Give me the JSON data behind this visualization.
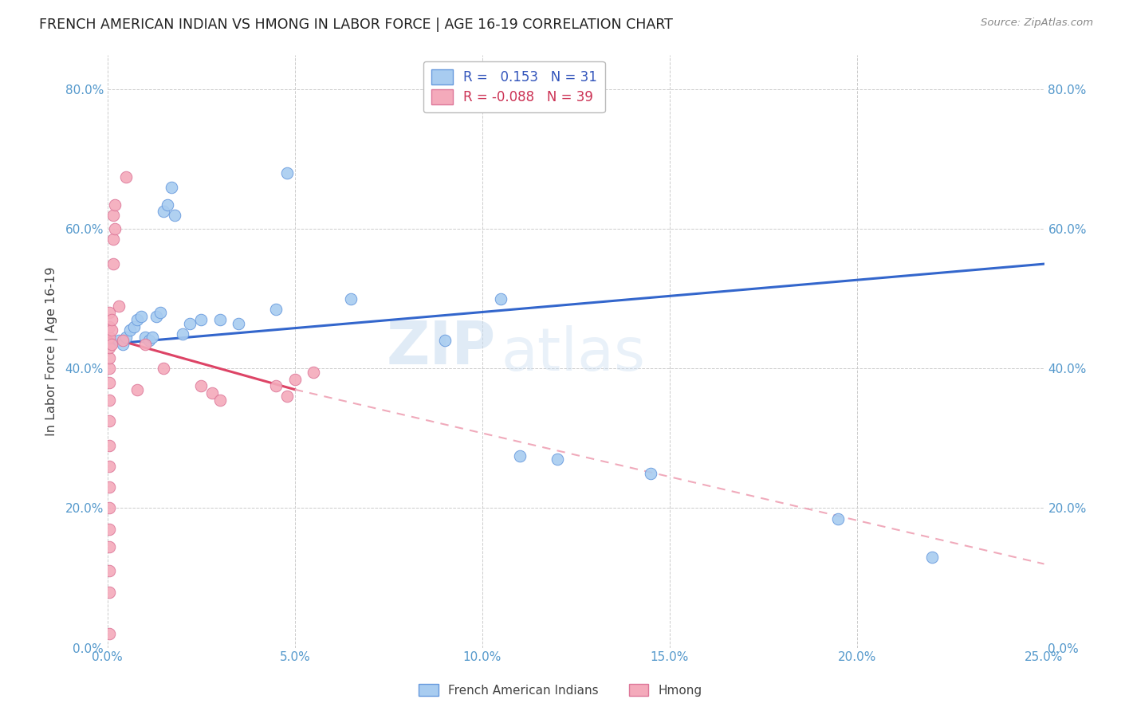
{
  "title": "FRENCH AMERICAN INDIAN VS HMONG IN LABOR FORCE | AGE 16-19 CORRELATION CHART",
  "source": "Source: ZipAtlas.com",
  "xlabel_ticks": [
    "0.0%",
    "5.0%",
    "10.0%",
    "15.0%",
    "20.0%",
    "25.0%"
  ],
  "xlabel_vals": [
    0.0,
    5.0,
    10.0,
    15.0,
    20.0,
    25.0
  ],
  "ylabel_ticks": [
    "0.0%",
    "20.0%",
    "40.0%",
    "60.0%",
    "80.0%"
  ],
  "ylabel_vals": [
    0.0,
    20.0,
    40.0,
    60.0,
    80.0
  ],
  "xlim": [
    0.0,
    25.0
  ],
  "ylim": [
    0.0,
    85.0
  ],
  "blue_label": "French American Indians",
  "pink_label": "Hmong",
  "blue_R": 0.153,
  "blue_N": 31,
  "pink_R": -0.088,
  "pink_N": 39,
  "blue_color": "#A8CCF0",
  "pink_color": "#F4AABB",
  "blue_edge_color": "#6699DD",
  "pink_edge_color": "#DD7799",
  "blue_line_color": "#3366CC",
  "pink_line_color": "#DD4466",
  "pink_dash_color": "#F0AABB",
  "watermark_zip": "ZIP",
  "watermark_atlas": "atlas",
  "blue_x": [
    0.3,
    0.4,
    0.5,
    0.6,
    0.7,
    0.8,
    0.9,
    1.0,
    1.1,
    1.2,
    1.3,
    1.4,
    1.5,
    1.6,
    1.7,
    1.8,
    2.0,
    2.2,
    2.5,
    3.0,
    3.5,
    4.5,
    4.8,
    6.5,
    9.0,
    10.5,
    11.0,
    12.0,
    14.5,
    19.5,
    22.0
  ],
  "blue_y": [
    44.0,
    43.5,
    44.5,
    45.5,
    46.0,
    47.0,
    47.5,
    44.5,
    44.0,
    44.5,
    47.5,
    48.0,
    62.5,
    63.5,
    66.0,
    62.0,
    45.0,
    46.5,
    47.0,
    47.0,
    46.5,
    48.5,
    68.0,
    50.0,
    44.0,
    50.0,
    27.5,
    27.0,
    25.0,
    18.5,
    13.0
  ],
  "pink_x": [
    0.05,
    0.05,
    0.05,
    0.05,
    0.05,
    0.05,
    0.05,
    0.05,
    0.05,
    0.05,
    0.05,
    0.05,
    0.05,
    0.05,
    0.05,
    0.05,
    0.05,
    0.05,
    0.1,
    0.1,
    0.1,
    0.15,
    0.15,
    0.15,
    0.2,
    0.2,
    0.3,
    0.4,
    0.5,
    0.8,
    1.0,
    1.5,
    2.5,
    2.8,
    3.0,
    4.5,
    5.0,
    5.5,
    4.8
  ],
  "pink_y": [
    2.0,
    8.0,
    11.0,
    14.5,
    17.0,
    20.0,
    23.0,
    26.0,
    29.0,
    32.5,
    35.5,
    38.0,
    40.0,
    41.5,
    43.0,
    44.5,
    46.0,
    48.0,
    43.5,
    45.5,
    47.0,
    55.0,
    58.5,
    62.0,
    60.0,
    63.5,
    49.0,
    44.0,
    67.5,
    37.0,
    43.5,
    40.0,
    37.5,
    36.5,
    35.5,
    37.5,
    38.5,
    39.5,
    36.0
  ],
  "blue_line_y0": 43.5,
  "blue_line_y1": 55.0,
  "pink_line_x0": 0.0,
  "pink_line_y0": 44.5,
  "pink_solid_x1": 5.0,
  "pink_solid_y1": 37.0,
  "pink_dash_x1": 25.0,
  "pink_dash_y1": 12.0
}
